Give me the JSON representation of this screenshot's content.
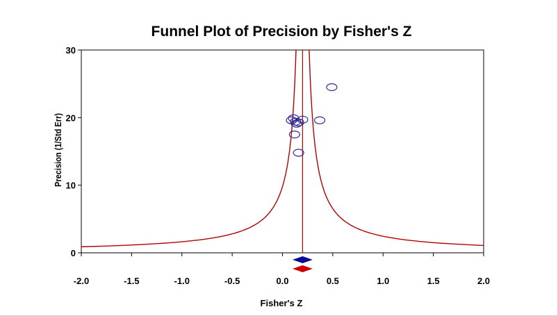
{
  "chart_data": {
    "type": "scatter",
    "title": "Funnel Plot of Precision by Fisher's Z",
    "xlabel": "Fisher's Z",
    "ylabel": "Precision (1/Std Err)",
    "xlim": [
      -2.0,
      2.0
    ],
    "ylim": [
      0,
      30
    ],
    "x_ticks": [
      "-2.0",
      "-1.5",
      "-1.0",
      "-0.5",
      "0.0",
      "0.5",
      "1.0",
      "1.5",
      "2.0"
    ],
    "y_ticks": [
      "0",
      "10",
      "20",
      "30"
    ],
    "grid": false,
    "legend": "none",
    "series": [
      {
        "points": [
          {
            "x": 0.49,
            "y": 24.5
          },
          {
            "x": 0.11,
            "y": 19.9
          },
          {
            "x": 0.09,
            "y": 19.6
          },
          {
            "x": 0.13,
            "y": 19.4
          },
          {
            "x": 0.16,
            "y": 19.3
          },
          {
            "x": 0.2,
            "y": 19.7
          },
          {
            "x": 0.14,
            "y": 19.1
          },
          {
            "x": 0.37,
            "y": 19.6
          },
          {
            "x": 0.12,
            "y": 17.5
          },
          {
            "x": 0.16,
            "y": 14.8
          }
        ],
        "marker": "open-circle",
        "color": "#1f1f8f"
      }
    ],
    "funnel": {
      "center": 0.2,
      "z": 1.96,
      "color": "#b00000"
    },
    "diamonds": [
      {
        "center": 0.2,
        "half_width": 0.1,
        "color": "#0a0a99"
      },
      {
        "center": 0.2,
        "half_width": 0.1,
        "color": "#cc0000"
      }
    ]
  }
}
